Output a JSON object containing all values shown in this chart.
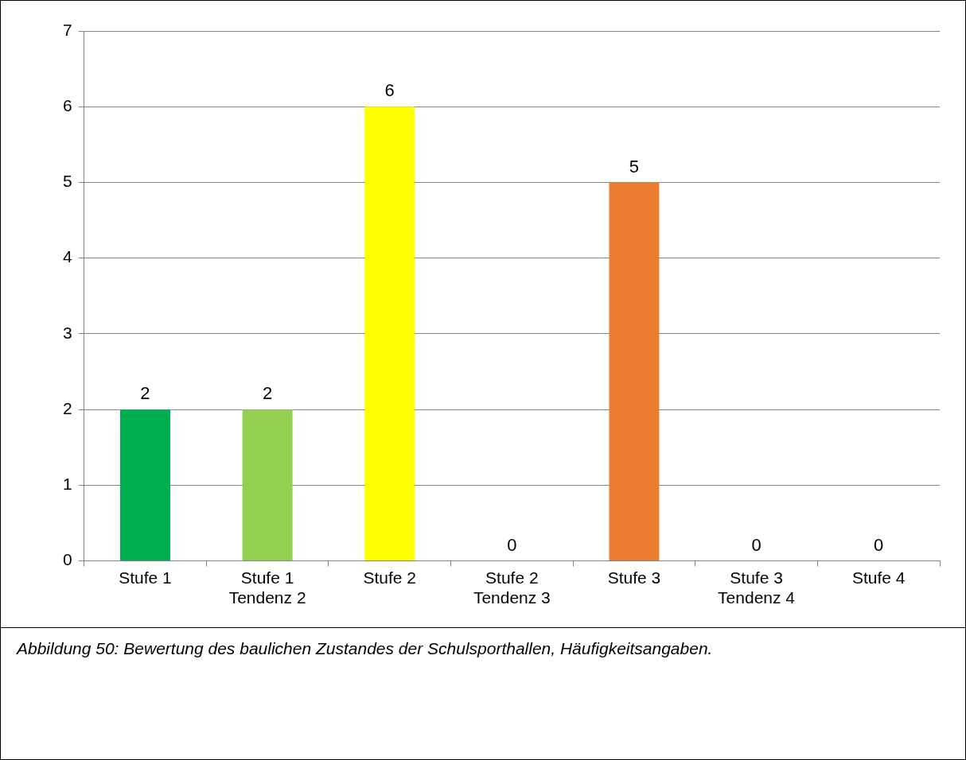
{
  "chart_data": {
    "type": "bar",
    "categories": [
      "Stufe 1",
      "Stufe 1\nTendenz 2",
      "Stufe 2",
      "Stufe 2\nTendenz 3",
      "Stufe 3",
      "Stufe 3\nTendenz 4",
      "Stufe 4"
    ],
    "values": [
      2,
      2,
      6,
      0,
      5,
      0,
      0
    ],
    "colors": [
      "#00b050",
      "#92d050",
      "#ffff00",
      "#ffc000",
      "#ed7d31",
      "#ff0000",
      "#c00000"
    ],
    "ylim": [
      0,
      7
    ],
    "yticks": [
      0,
      1,
      2,
      3,
      4,
      5,
      6,
      7
    ],
    "grid": "y",
    "data_labels": true,
    "legend": false,
    "annotations": [
      "Abbildung 50: Bewertung des baulichen Zustandes der Schulsporthallen, Häufigkeitsangaben."
    ]
  }
}
